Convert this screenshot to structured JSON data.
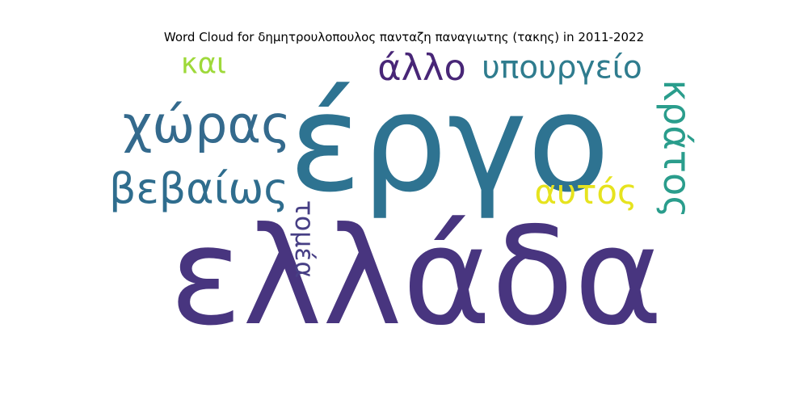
{
  "chart_data": {
    "type": "wordcloud",
    "title": "Word Cloud for δημητρουλοπουλος πανταζη παναγιωτης (τακης) in 2011-2022",
    "words": [
      {
        "text": "ελλάδα",
        "rank": 1,
        "color": "#48357f",
        "orientation": "horizontal"
      },
      {
        "text": "έργο",
        "rank": 2,
        "color": "#2e7391",
        "orientation": "horizontal"
      },
      {
        "text": "χώρας",
        "rank": 3,
        "color": "#346a8d",
        "orientation": "horizontal"
      },
      {
        "text": "βεβαίως",
        "rank": 4,
        "color": "#2f6d8e",
        "orientation": "horizontal"
      },
      {
        "text": "κράτος",
        "rank": 5,
        "color": "#2a9d8c",
        "orientation": "vertical"
      },
      {
        "text": "άλλο",
        "rank": 6,
        "color": "#482677",
        "orientation": "horizontal"
      },
      {
        "text": "υπουργείο",
        "rank": 7,
        "color": "#2f7c8e",
        "orientation": "horizontal"
      },
      {
        "text": "τομέα",
        "rank": 8,
        "color": "#473f85",
        "orientation": "vertical"
      },
      {
        "text": "αυτός",
        "rank": 9,
        "color": "#e6e31e",
        "orientation": "horizontal"
      },
      {
        "text": "και",
        "rank": 10,
        "color": "#9ed93a",
        "orientation": "horizontal"
      }
    ]
  }
}
